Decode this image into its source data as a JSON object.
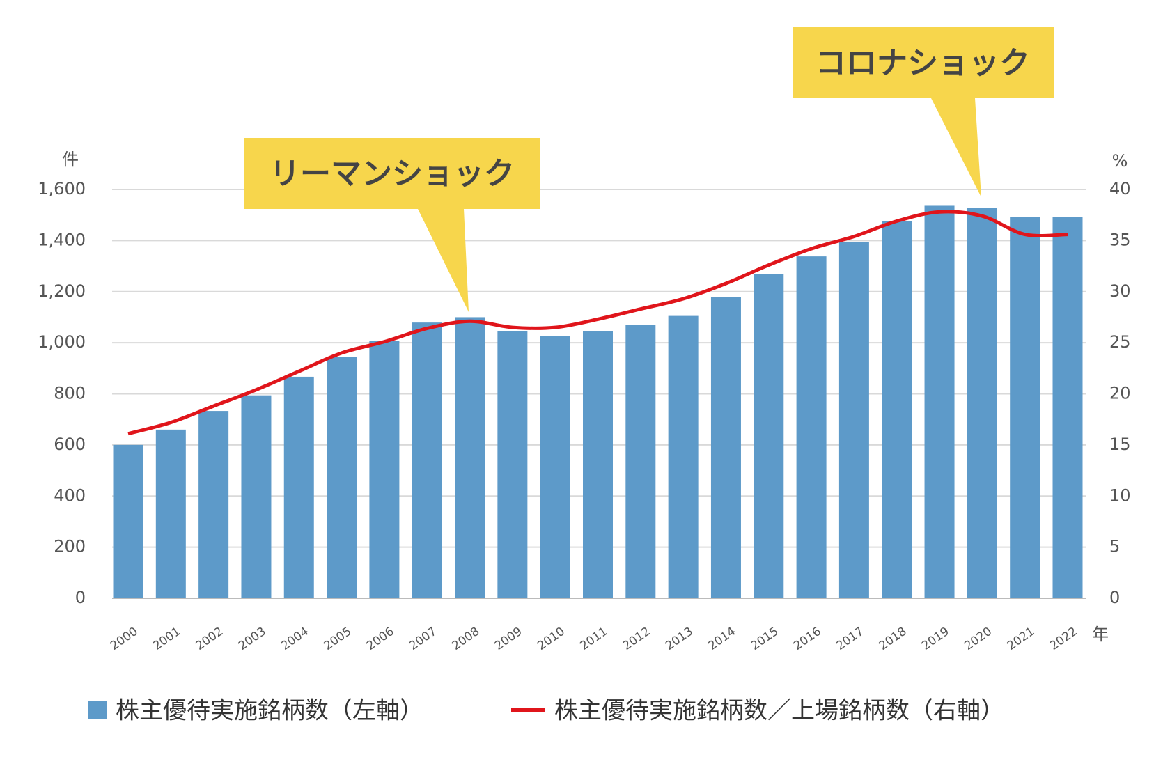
{
  "chart_data": {
    "type": "bar-line",
    "y_label": "件",
    "y2_label": "%",
    "x_label": "年",
    "categories": [
      "2000",
      "2001",
      "2002",
      "2003",
      "2004",
      "2005",
      "2006",
      "2007",
      "2008",
      "2009",
      "2010",
      "2011",
      "2012",
      "2013",
      "2014",
      "2015",
      "2016",
      "2017",
      "2018",
      "2019",
      "2020",
      "2021",
      "2022"
    ],
    "series": [
      {
        "name": "株主優待実施銘柄数（左軸）",
        "type": "bar",
        "color": "#5d9ac9",
        "values": [
          600,
          660,
          733,
          794,
          867,
          945,
          1007,
          1079,
          1100,
          1044,
          1027,
          1044,
          1071,
          1105,
          1178,
          1268,
          1338,
          1393,
          1475,
          1536,
          1527,
          1492,
          1492
        ]
      },
      {
        "name": "株主優待実施銘柄数／上場銘柄数（右軸）",
        "type": "line",
        "color": "#e0151b",
        "axis": "y2",
        "values": [
          16.1,
          17.2,
          18.8,
          20.4,
          22.2,
          24.0,
          25.1,
          26.4,
          27.1,
          26.5,
          26.5,
          27.3,
          28.3,
          29.3,
          30.8,
          32.6,
          34.2,
          35.4,
          36.9,
          37.8,
          37.4,
          35.6,
          35.6
        ]
      }
    ],
    "ylim": [
      0,
      1600
    ],
    "yticks": [
      0,
      200,
      400,
      600,
      800,
      {
        "value": 1000,
        "label": "1,000"
      },
      {
        "value": 1200,
        "label": "1,200"
      },
      {
        "value": 1400,
        "label": "1,400"
      },
      {
        "value": 1600,
        "label": "1,600"
      }
    ],
    "y2lim": [
      0,
      40
    ],
    "y2ticks": [
      0,
      5,
      10,
      15,
      20,
      25,
      30,
      35,
      40
    ],
    "grid": true,
    "annotations": [
      "リーマンショック",
      "コロナショック"
    ]
  }
}
